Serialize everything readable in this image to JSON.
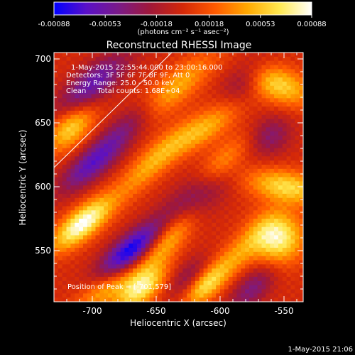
{
  "colorbar": {
    "tick_labels": [
      "-0.00088",
      "-0.00053",
      "-0.00018",
      "0.00018",
      "0.00053",
      "0.00088"
    ],
    "unit_label": "(photons cm⁻² s⁻¹ asec⁻²)",
    "colormap": [
      "#0000ff",
      "#5a10c8",
      "#7a1a88",
      "#a01838",
      "#d42808",
      "#ff5a00",
      "#ffa800",
      "#ffe850",
      "#ffffff"
    ]
  },
  "chart_data": {
    "type": "heatmap",
    "title": "Reconstructed RHESSI Image",
    "xlabel": "Heliocentric X (arcsec)",
    "ylabel": "Heliocentric Y (arcsec)",
    "xlim": [
      -730,
      -535
    ],
    "ylim": [
      510,
      705
    ],
    "xticks": [
      -700,
      -650,
      -600,
      -550
    ],
    "yticks": [
      550,
      600,
      650,
      700
    ],
    "value_range": [
      -0.00088,
      0.00088
    ],
    "annotations": [
      "1-May-2015 22:55:44.000 to 23:00:16.000",
      "Detectors: 3F 5F 6F 7F 8F 9F, Att 0",
      "Energy Range: 25.0 - 50.0 keV",
      "Clean     Total counts: 1.68E+04"
    ],
    "peak_label": "Position of Peak = [-701,579]",
    "peak": [
      -701,
      579
    ],
    "components": [
      {
        "x": -708,
        "y": 571,
        "amp": 0.00088,
        "sx": 20,
        "sy": 8,
        "angle": 40
      },
      {
        "x": -717,
        "y": 646,
        "amp": 0.0006,
        "sx": 16,
        "sy": 9,
        "angle": 45
      },
      {
        "x": -690,
        "y": 520,
        "amp": 0.00045,
        "sx": 20,
        "sy": 8,
        "angle": 35
      },
      {
        "x": -662,
        "y": 520,
        "amp": 0.0007,
        "sx": 16,
        "sy": 8,
        "angle": 40
      },
      {
        "x": -640,
        "y": 560,
        "amp": 0.00055,
        "sx": 25,
        "sy": 8,
        "angle": 50
      },
      {
        "x": -652,
        "y": 620,
        "amp": 0.00045,
        "sx": 28,
        "sy": 8,
        "angle": 45
      },
      {
        "x": -638,
        "y": 675,
        "amp": 0.0005,
        "sx": 28,
        "sy": 9,
        "angle": 40
      },
      {
        "x": -612,
        "y": 645,
        "amp": 0.00045,
        "sx": 22,
        "sy": 8,
        "angle": 35
      },
      {
        "x": -598,
        "y": 620,
        "amp": 0.00035,
        "sx": 18,
        "sy": 8,
        "angle": 45
      },
      {
        "x": -588,
        "y": 545,
        "amp": 0.0004,
        "sx": 24,
        "sy": 8,
        "angle": 45
      },
      {
        "x": -555,
        "y": 560,
        "amp": 0.00078,
        "sx": 14,
        "sy": 14,
        "angle": 90
      },
      {
        "x": -548,
        "y": 600,
        "amp": 0.00062,
        "sx": 9,
        "sy": 22,
        "angle": 80
      },
      {
        "x": -555,
        "y": 680,
        "amp": 0.0006,
        "sx": 10,
        "sy": 20,
        "angle": 70
      },
      {
        "x": -612,
        "y": 522,
        "amp": 0.0005,
        "sx": 14,
        "sy": 7,
        "angle": 45
      },
      {
        "x": -670,
        "y": 550,
        "amp": -0.00088,
        "sx": 22,
        "sy": 8,
        "angle": 40
      },
      {
        "x": -700,
        "y": 618,
        "amp": -0.0006,
        "sx": 22,
        "sy": 8,
        "angle": 40
      },
      {
        "x": -700,
        "y": 680,
        "amp": -0.00058,
        "sx": 24,
        "sy": 9,
        "angle": 40
      },
      {
        "x": -620,
        "y": 590,
        "amp": -0.00045,
        "sx": 22,
        "sy": 10,
        "angle": 40
      },
      {
        "x": -670,
        "y": 650,
        "amp": -0.0004,
        "sx": 22,
        "sy": 8,
        "angle": 40
      },
      {
        "x": -560,
        "y": 640,
        "amp": -0.00035,
        "sx": 12,
        "sy": 10,
        "angle": 45
      },
      {
        "x": -580,
        "y": 685,
        "amp": -0.00035,
        "sx": 14,
        "sy": 10,
        "angle": 45
      },
      {
        "x": -625,
        "y": 530,
        "amp": -0.0003,
        "sx": 14,
        "sy": 7,
        "angle": 45
      },
      {
        "x": -575,
        "y": 520,
        "amp": -0.0004,
        "sx": 16,
        "sy": 8,
        "angle": 45
      }
    ]
  },
  "footer": {
    "timestamp": "1-May-2015 21:06"
  }
}
